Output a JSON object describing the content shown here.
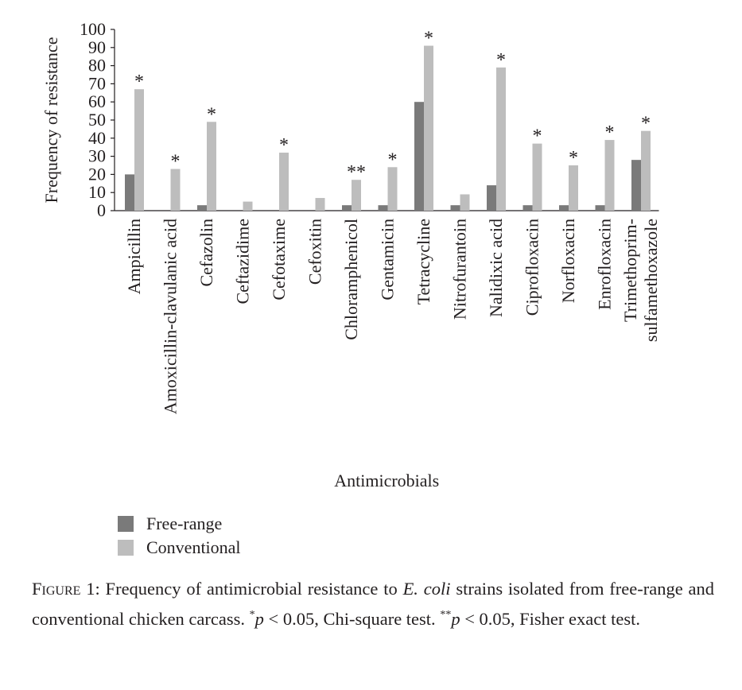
{
  "chart_data": {
    "type": "bar",
    "title": "",
    "xlabel": "Antimicrobials",
    "ylabel": "Frequency of resistance",
    "ylim": [
      0,
      100
    ],
    "yticks": [
      0,
      10,
      20,
      30,
      40,
      50,
      60,
      70,
      80,
      90,
      100
    ],
    "grid": false,
    "legend_position": "bottom-left",
    "categories": [
      [
        "Ampicillin"
      ],
      [
        "Amoxicillin-clavulanic acid"
      ],
      [
        "Cefazolin"
      ],
      [
        "Ceftazidime"
      ],
      [
        "Cefotaxime"
      ],
      [
        "Cefoxitin"
      ],
      [
        "Chloramphenicol"
      ],
      [
        "Gentamicin"
      ],
      [
        "Tetracycline"
      ],
      [
        "Nitrofurantoin"
      ],
      [
        "Nalidixic acid"
      ],
      [
        "Ciprofloxacin"
      ],
      [
        "Norfloxacin"
      ],
      [
        "Enrofloxacin"
      ],
      [
        "Trimethoprim-",
        "sulfamethoxazole"
      ]
    ],
    "series": [
      {
        "name": "Free-range",
        "color": "#7a7a7a",
        "values": [
          20,
          0,
          3,
          0,
          0,
          0,
          3,
          3,
          60,
          3,
          14,
          3,
          3,
          3,
          28
        ]
      },
      {
        "name": "Conventional",
        "color": "#bdbdbd",
        "values": [
          67,
          23,
          49,
          5,
          32,
          7,
          17,
          24,
          91,
          9,
          79,
          37,
          25,
          39,
          44
        ]
      }
    ],
    "significance": [
      "*",
      "*",
      "*",
      "",
      "*",
      "",
      "**",
      "*",
      "*",
      "",
      "*",
      "*",
      "*",
      "*",
      "*"
    ]
  },
  "caption": {
    "label": "Figure 1:",
    "text_1": " Frequency of antimicrobial resistance to ",
    "organism": "E. coli",
    "text_2": " strains isolated from free-range and conventional chicken carcass. ",
    "star1": "*",
    "p1": "p",
    "text_3": " < 0.05, Chi-square test. ",
    "star2": "**",
    "p2": "p",
    "text_4": " < 0.05, Fisher exact test."
  }
}
